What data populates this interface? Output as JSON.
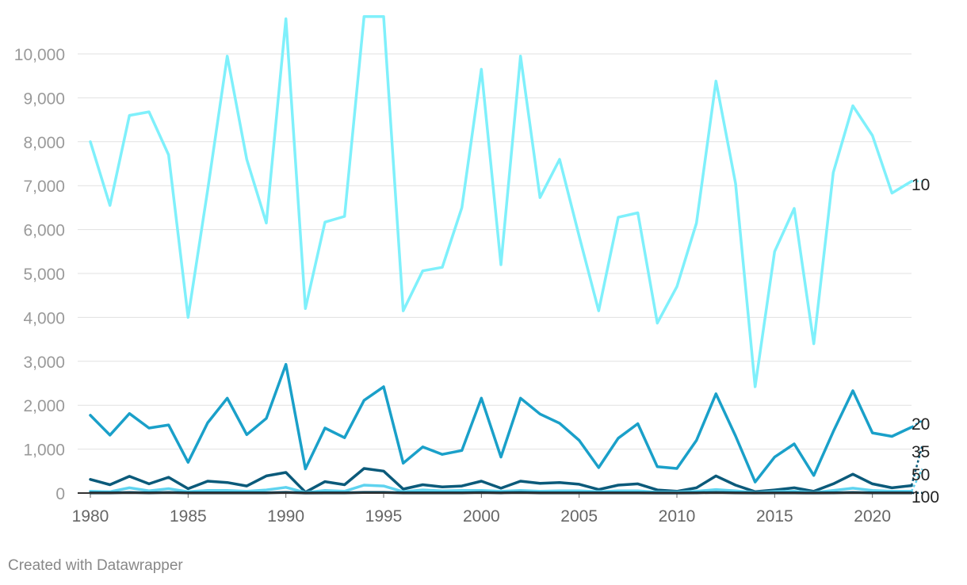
{
  "footer": "Created with Datawrapper",
  "chart_data": {
    "type": "line",
    "title": "",
    "xlabel": "",
    "ylabel": "",
    "x": [
      1980,
      1981,
      1982,
      1983,
      1984,
      1985,
      1986,
      1987,
      1988,
      1989,
      1990,
      1991,
      1992,
      1993,
      1994,
      1995,
      1996,
      1997,
      1998,
      1999,
      2000,
      2001,
      2002,
      2003,
      2004,
      2005,
      2006,
      2007,
      2008,
      2009,
      2010,
      2011,
      2012,
      2013,
      2014,
      2015,
      2016,
      2017,
      2018,
      2019,
      2020,
      2021,
      2022
    ],
    "xlim": [
      1980,
      2022
    ],
    "ylim": [
      0,
      10800
    ],
    "x_ticks": [
      {
        "value": 1980,
        "label": "1980"
      },
      {
        "value": 1985,
        "label": "1985"
      },
      {
        "value": 1990,
        "label": "1990"
      },
      {
        "value": 1995,
        "label": "1995"
      },
      {
        "value": 2000,
        "label": "2000"
      },
      {
        "value": 2005,
        "label": "2005"
      },
      {
        "value": 2010,
        "label": "2010"
      },
      {
        "value": 2015,
        "label": "2015"
      },
      {
        "value": 2020,
        "label": "2020"
      }
    ],
    "y_ticks": [
      {
        "value": 0,
        "label": "0"
      },
      {
        "value": 1000,
        "label": "1,000"
      },
      {
        "value": 2000,
        "label": "2,000"
      },
      {
        "value": 3000,
        "label": "3,000"
      },
      {
        "value": 4000,
        "label": "4,000"
      },
      {
        "value": 5000,
        "label": "5,000"
      },
      {
        "value": 6000,
        "label": "6,000"
      },
      {
        "value": 7000,
        "label": "7,000"
      },
      {
        "value": 8000,
        "label": "8,000"
      },
      {
        "value": 9000,
        "label": "9,000"
      },
      {
        "value": 10000,
        "label": "10,000"
      }
    ],
    "grid": true,
    "legend": "direct labels at right end of lines",
    "series": [
      {
        "name": "10",
        "color": "#7ff0fb",
        "values": [
          8000,
          6550,
          8600,
          8680,
          7700,
          4000,
          6900,
          9950,
          7600,
          6150,
          10800,
          4200,
          6170,
          6300,
          10850,
          10850,
          4150,
          5060,
          5140,
          6500,
          9650,
          5200,
          9950,
          6730,
          7600,
          5850,
          4150,
          6280,
          6380,
          3870,
          4700,
          6150,
          9380,
          7050,
          2420,
          5500,
          6480,
          3400,
          7300,
          8820,
          8140,
          6830,
          7100
        ],
        "projection": 7100
      },
      {
        "name": "20",
        "color": "#1aa0c9",
        "values": [
          1770,
          1320,
          1810,
          1480,
          1550,
          700,
          1600,
          2160,
          1330,
          1700,
          2930,
          550,
          1480,
          1260,
          2110,
          2420,
          680,
          1050,
          880,
          970,
          2160,
          820,
          2160,
          1800,
          1590,
          1200,
          580,
          1250,
          1580,
          600,
          560,
          1200,
          2260,
          1300,
          250,
          820,
          1120,
          400,
          1400,
          2330,
          1370,
          1290,
          1500
        ],
        "projection": 1650
      },
      {
        "name": "35",
        "color": "#0b5a7a",
        "values": [
          310,
          190,
          380,
          210,
          360,
          100,
          270,
          240,
          160,
          390,
          470,
          20,
          260,
          190,
          560,
          500,
          90,
          190,
          140,
          160,
          270,
          110,
          270,
          220,
          240,
          200,
          80,
          180,
          210,
          70,
          40,
          120,
          390,
          180,
          30,
          70,
          120,
          40,
          210,
          430,
          210,
          120,
          170
        ],
        "projection": 1080
      },
      {
        "name": "50",
        "color": "#5fd3ef",
        "values": [
          40,
          30,
          120,
          50,
          100,
          30,
          60,
          60,
          40,
          70,
          130,
          10,
          60,
          40,
          180,
          160,
          30,
          70,
          50,
          60,
          60,
          40,
          60,
          40,
          50,
          50,
          30,
          50,
          50,
          20,
          20,
          40,
          80,
          50,
          10,
          30,
          40,
          10,
          60,
          110,
          60,
          40,
          40
        ],
        "projection": 550
      },
      {
        "name": "100",
        "color": "#06384d",
        "values": [
          5,
          5,
          10,
          5,
          10,
          5,
          5,
          5,
          5,
          5,
          15,
          2,
          5,
          5,
          15,
          15,
          5,
          5,
          5,
          5,
          10,
          5,
          10,
          5,
          5,
          5,
          5,
          5,
          5,
          2,
          2,
          5,
          10,
          5,
          2,
          5,
          5,
          2,
          5,
          10,
          5,
          5,
          5
        ],
        "projection": 5
      }
    ]
  }
}
